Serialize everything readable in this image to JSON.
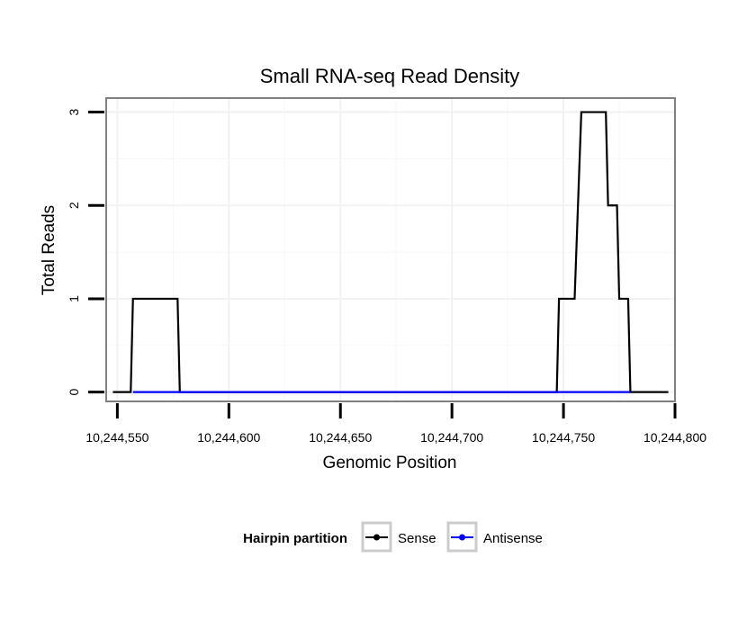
{
  "chart_data": {
    "type": "line",
    "title": "Small RNA-seq Read Density",
    "xlabel": "Genomic Position",
    "ylabel": "Total Reads",
    "xlim": [
      10244545,
      10244800
    ],
    "ylim": [
      -0.1,
      3.15
    ],
    "x_ticks": [
      10244550,
      10244600,
      10244650,
      10244700,
      10244750,
      10244800
    ],
    "x_tick_labels": [
      "10,244,550",
      "10,244,600",
      "10,244,650",
      "10,244,700",
      "10,244,750",
      "10,244,800"
    ],
    "y_ticks": [
      0,
      1,
      2,
      3
    ],
    "y_tick_labels": [
      "0",
      "1",
      "2",
      "3"
    ],
    "grid": true,
    "legend": {
      "title": "Hairpin partition",
      "position": "bottom"
    },
    "series": [
      {
        "name": "Sense",
        "color": "#000000",
        "points": [
          [
            10244548,
            0
          ],
          [
            10244556,
            0
          ],
          [
            10244557,
            1
          ],
          [
            10244577,
            1
          ],
          [
            10244578,
            0
          ],
          [
            10244747,
            0
          ],
          [
            10244748,
            1
          ],
          [
            10244755,
            1
          ],
          [
            10244758,
            3
          ],
          [
            10244769,
            3
          ],
          [
            10244770,
            2
          ],
          [
            10244774,
            2
          ],
          [
            10244775,
            1
          ],
          [
            10244779,
            1
          ],
          [
            10244780,
            0
          ],
          [
            10244797,
            0
          ]
        ]
      },
      {
        "name": "Antisense",
        "color": "#0000ff",
        "points": [
          [
            10244557,
            0
          ],
          [
            10244578,
            0
          ],
          [
            10244748,
            0
          ],
          [
            10244780,
            0
          ]
        ]
      }
    ]
  }
}
